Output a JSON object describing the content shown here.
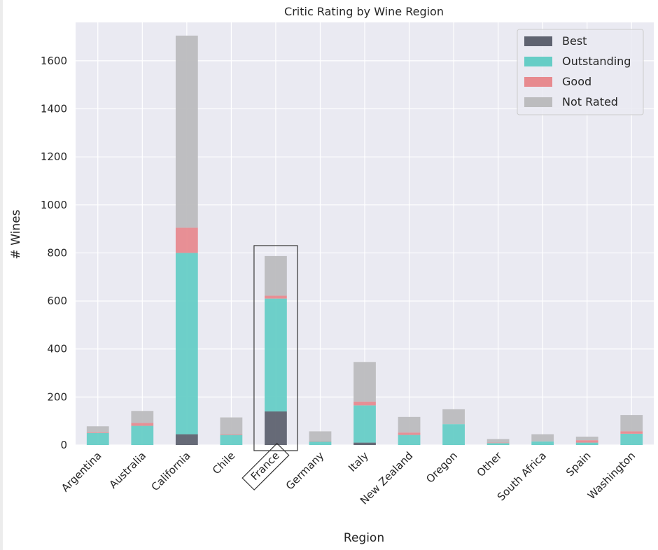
{
  "chart_data": {
    "type": "bar",
    "stacked": true,
    "title": "Critic Rating by Wine Region",
    "xlabel": "Region",
    "ylabel": "# Wines",
    "ylim": [
      0,
      1760
    ],
    "yticks": [
      0,
      200,
      400,
      600,
      800,
      1000,
      1200,
      1400,
      1600
    ],
    "grid": true,
    "legend_position": "top-right",
    "categories": [
      "Argentina",
      "Australia",
      "California",
      "Chile",
      "France",
      "Germany",
      "Italy",
      "New Zealand",
      "Oregon",
      "Other",
      "South Africa",
      "Spain",
      "Washington"
    ],
    "series": [
      {
        "name": "Best",
        "color": "#5f6370",
        "values": [
          0,
          0,
          45,
          0,
          140,
          0,
          10,
          0,
          0,
          0,
          0,
          0,
          0
        ]
      },
      {
        "name": "Outstanding",
        "color": "#66cdc6",
        "values": [
          50,
          80,
          755,
          42,
          470,
          15,
          155,
          42,
          87,
          8,
          15,
          10,
          47
        ]
      },
      {
        "name": "Good",
        "color": "#e78a8f",
        "values": [
          3,
          12,
          105,
          3,
          12,
          2,
          16,
          10,
          0,
          2,
          0,
          10,
          10
        ]
      },
      {
        "name": "Not Rated",
        "color": "#bcbcbe",
        "values": [
          25,
          50,
          800,
          70,
          165,
          40,
          165,
          65,
          62,
          15,
          30,
          15,
          68
        ]
      }
    ],
    "highlighted_category": "France"
  }
}
